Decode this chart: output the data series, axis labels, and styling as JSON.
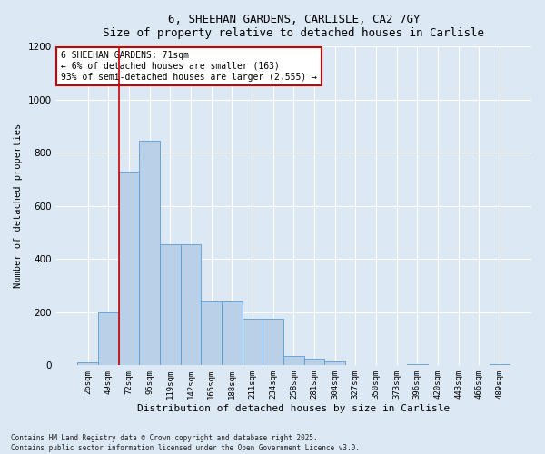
{
  "title_line1": "6, SHEEHAN GARDENS, CARLISLE, CA2 7GY",
  "title_line2": "Size of property relative to detached houses in Carlisle",
  "xlabel": "Distribution of detached houses by size in Carlisle",
  "ylabel": "Number of detached properties",
  "annotation_line1": "6 SHEEHAN GARDENS: 71sqm",
  "annotation_line2": "← 6% of detached houses are smaller (163)",
  "annotation_line3": "93% of semi-detached houses are larger (2,555) →",
  "footer_line1": "Contains HM Land Registry data © Crown copyright and database right 2025.",
  "footer_line2": "Contains public sector information licensed under the Open Government Licence v3.0.",
  "bar_color": "#b8d0e8",
  "bar_edge_color": "#5b9bd5",
  "background_color": "#dce9f5",
  "annotation_box_color": "#ffffff",
  "annotation_box_edge_color": "#cc0000",
  "vline_color": "#cc0000",
  "grid_color": "#ffffff",
  "categories": [
    "26sqm",
    "49sqm",
    "72sqm",
    "95sqm",
    "119sqm",
    "142sqm",
    "165sqm",
    "188sqm",
    "211sqm",
    "234sqm",
    "258sqm",
    "281sqm",
    "304sqm",
    "327sqm",
    "350sqm",
    "373sqm",
    "396sqm",
    "420sqm",
    "443sqm",
    "466sqm",
    "489sqm"
  ],
  "values": [
    10,
    200,
    730,
    845,
    455,
    455,
    240,
    240,
    175,
    175,
    35,
    25,
    15,
    2,
    2,
    2,
    5,
    2,
    2,
    2,
    5
  ],
  "ylim": [
    0,
    1200
  ],
  "yticks": [
    0,
    200,
    400,
    600,
    800,
    1000,
    1200
  ],
  "vline_x": 1.5,
  "fig_width": 6.0,
  "fig_height": 5.0,
  "dpi": 100
}
